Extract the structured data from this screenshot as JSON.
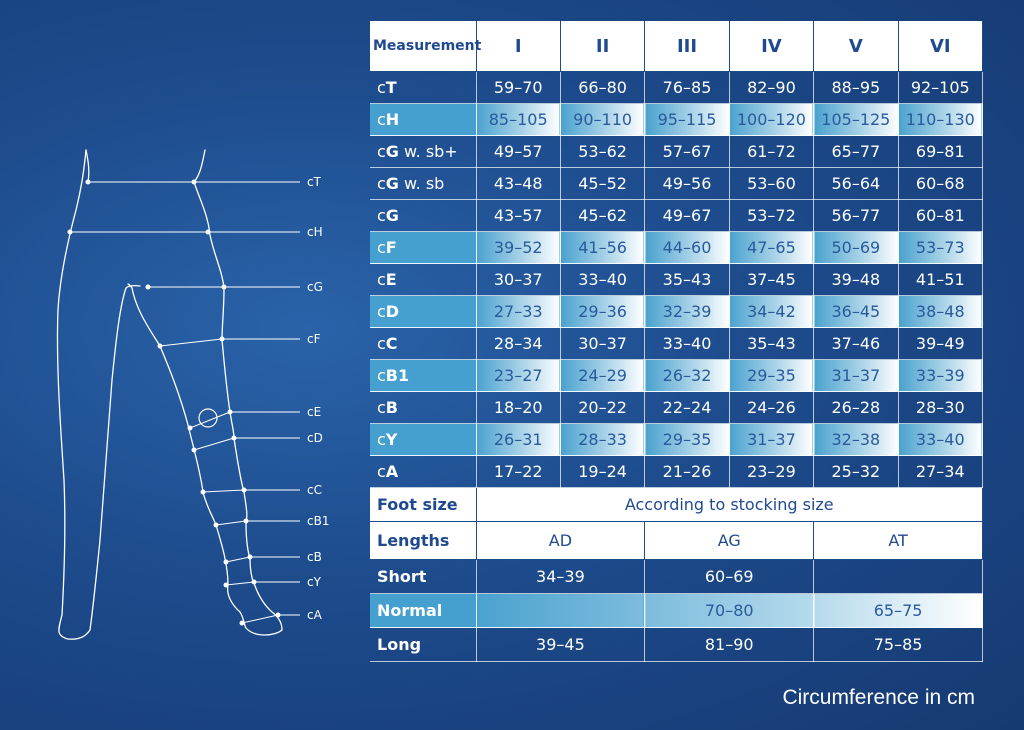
{
  "figure": {
    "labels": {
      "T": "cT",
      "H": "cH",
      "G": "cG",
      "F": "cF",
      "E": "cE",
      "D": "cD",
      "C": "cC",
      "B1": "cB1",
      "B": "cB",
      "Y": "cY",
      "A": "cA"
    }
  },
  "table": {
    "header": [
      "Measurement",
      "I",
      "II",
      "III",
      "IV",
      "V",
      "VI"
    ],
    "rows": [
      {
        "prefix": "c",
        "key": "T",
        "suffix": "",
        "values": [
          "59–70",
          "66–80",
          "76–85",
          "82–90",
          "88–95",
          "92–105"
        ]
      },
      {
        "prefix": "c",
        "key": "H",
        "suffix": "",
        "values": [
          "85–105",
          "90–110",
          "95–115",
          "100–120",
          "105–125",
          "110–130"
        ]
      },
      {
        "prefix": "c",
        "key": "G",
        "suffix": " w. sb+",
        "values": [
          "49–57",
          "53–62",
          "57–67",
          "61–72",
          "65–77",
          "69–81"
        ]
      },
      {
        "prefix": "c",
        "key": "G",
        "suffix": " w. sb",
        "values": [
          "43–48",
          "45–52",
          "49–56",
          "53–60",
          "56–64",
          "60–68"
        ]
      },
      {
        "prefix": "c",
        "key": "G",
        "suffix": "",
        "values": [
          "43–57",
          "45–62",
          "49–67",
          "53–72",
          "56–77",
          "60–81"
        ]
      },
      {
        "prefix": "c",
        "key": "F",
        "suffix": "",
        "values": [
          "39–52",
          "41–56",
          "44–60",
          "47–65",
          "50–69",
          "53–73"
        ]
      },
      {
        "prefix": "c",
        "key": "E",
        "suffix": "",
        "values": [
          "30–37",
          "33–40",
          "35–43",
          "37–45",
          "39–48",
          "41–51"
        ]
      },
      {
        "prefix": "c",
        "key": "D",
        "suffix": "",
        "values": [
          "27–33",
          "29–36",
          "32–39",
          "34–42",
          "36–45",
          "38–48"
        ]
      },
      {
        "prefix": "c",
        "key": "C",
        "suffix": "",
        "values": [
          "28–34",
          "30–37",
          "33–40",
          "35–43",
          "37–46",
          "39–49"
        ]
      },
      {
        "prefix": "c",
        "key": "B1",
        "suffix": "",
        "values": [
          "23–27",
          "24–29",
          "26–32",
          "29–35",
          "31–37",
          "33–39"
        ]
      },
      {
        "prefix": "c",
        "key": "B",
        "suffix": "",
        "values": [
          "18–20",
          "20–22",
          "22–24",
          "24–26",
          "26–28",
          "28–30"
        ]
      },
      {
        "prefix": "c",
        "key": "Y",
        "suffix": "",
        "values": [
          "26–31",
          "28–33",
          "29–35",
          "31–37",
          "32–38",
          "33–40"
        ]
      },
      {
        "prefix": "c",
        "key": "A",
        "suffix": "",
        "values": [
          "17–22",
          "19–24",
          "21–26",
          "23–29",
          "25–32",
          "27–34"
        ]
      }
    ],
    "foot_size": {
      "label": "Foot size",
      "value": "According to stocking size"
    },
    "lengths": {
      "label": "Lengths",
      "columns": [
        "AD",
        "AG",
        "AT"
      ],
      "rows": [
        {
          "label": "Short",
          "values": [
            "34–39",
            "60–69",
            ""
          ]
        },
        {
          "label": "Normal",
          "values": [
            "",
            "70–80",
            "65–75"
          ]
        },
        {
          "label": "Long",
          "values": [
            "39–45",
            "81–90",
            "75–85"
          ]
        }
      ]
    }
  },
  "caption": "Circumference in cm"
}
